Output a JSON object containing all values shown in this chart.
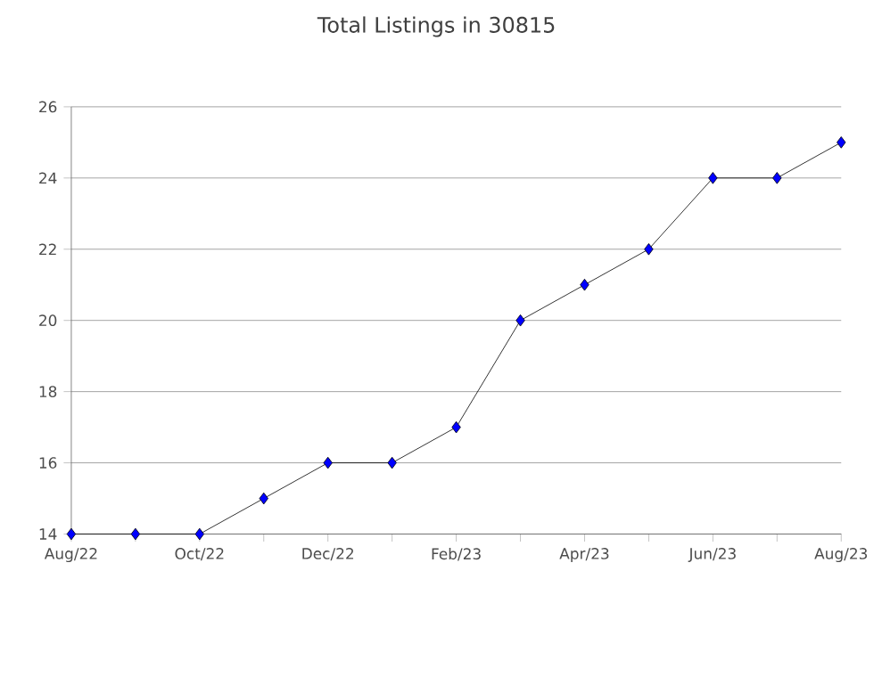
{
  "chart_data": {
    "type": "line",
    "title": "Total Listings in 30815",
    "categories": [
      "Aug/22",
      null,
      "Oct/22",
      null,
      "Dec/22",
      null,
      "Feb/23",
      null,
      "Apr/23",
      null,
      "Jun/23",
      null,
      "Aug/23"
    ],
    "series": [
      {
        "color": "#0000ff",
        "values": [
          14,
          14,
          14,
          15,
          16,
          16,
          17,
          20,
          21,
          22,
          24,
          24,
          25
        ]
      }
    ],
    "ylim": [
      14,
      26
    ],
    "yticks": [
      14,
      16,
      18,
      20,
      22,
      24,
      26
    ],
    "grid": "y",
    "marker": "diamond",
    "line_style": "solid"
  }
}
